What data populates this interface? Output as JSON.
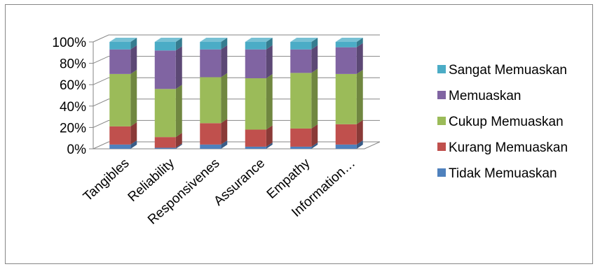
{
  "chart_data": {
    "type": "bar",
    "stacked": true,
    "percent": true,
    "three_d": true,
    "title": "",
    "xlabel": "",
    "ylabel": "",
    "ylim": [
      0,
      100
    ],
    "y_ticks": [
      "0%",
      "20%",
      "40%",
      "60%",
      "80%",
      "100%"
    ],
    "grid": true,
    "legend_position": "right",
    "categories": [
      "Tangibles",
      "Reliability",
      "Responsivenes",
      "Assurance",
      "Empathy",
      "Information…"
    ],
    "series": [
      {
        "name": "Tidak Memuaskan",
        "color": "#4f81bd",
        "values": [
          4,
          1,
          4,
          2,
          2,
          4
        ]
      },
      {
        "name": "Kurang Memuaskan",
        "color": "#c0504d",
        "values": [
          17,
          10,
          20,
          16,
          17,
          19
        ]
      },
      {
        "name": "Cukup Memuaskan",
        "color": "#9bbb59",
        "values": [
          49,
          45,
          43,
          48,
          52,
          47
        ]
      },
      {
        "name": "Memuaskan",
        "color": "#8064a2",
        "values": [
          23,
          36,
          26,
          27,
          22,
          25
        ]
      },
      {
        "name": "Sangat Memuaskan",
        "color": "#4bacc6",
        "values": [
          7,
          8,
          7,
          7,
          7,
          5
        ]
      }
    ]
  }
}
